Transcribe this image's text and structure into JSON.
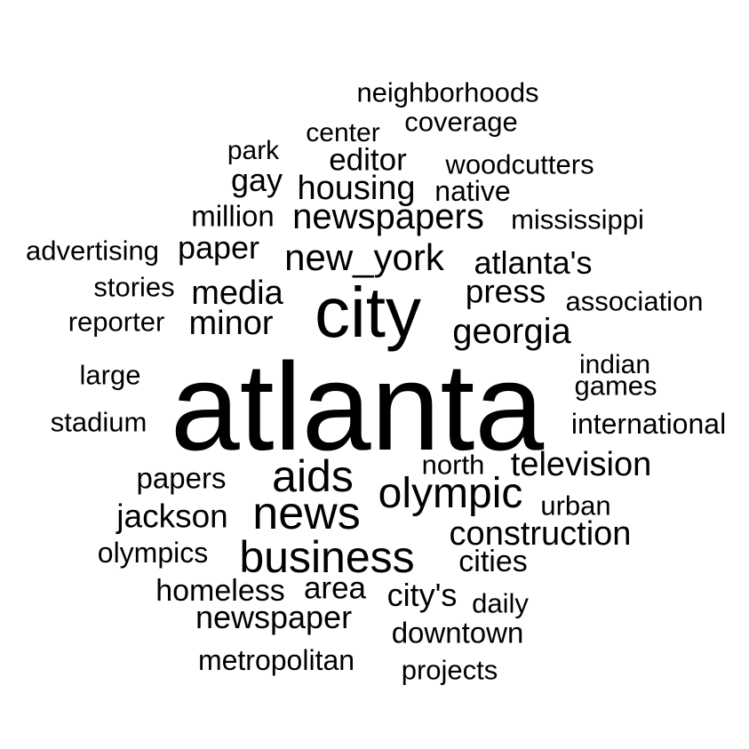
{
  "word_cloud": {
    "text_color": "#000000",
    "background_color": "#ffffff",
    "words": [
      {
        "text": "atlanta",
        "weight": 100
      },
      {
        "text": "city",
        "weight": 57
      },
      {
        "text": "news",
        "weight": 38
      },
      {
        "text": "business",
        "weight": 36
      },
      {
        "text": "aids",
        "weight": 36
      },
      {
        "text": "olympic",
        "weight": 34
      },
      {
        "text": "new_york",
        "weight": 30
      },
      {
        "text": "newspapers",
        "weight": 29
      },
      {
        "text": "georgia",
        "weight": 29
      },
      {
        "text": "housing",
        "weight": 29
      },
      {
        "text": "construction",
        "weight": 28
      },
      {
        "text": "media",
        "weight": 28
      },
      {
        "text": "minor",
        "weight": 28
      },
      {
        "text": "television",
        "weight": 28
      },
      {
        "text": "press",
        "weight": 27
      },
      {
        "text": "atlanta's",
        "weight": 27
      },
      {
        "text": "jackson",
        "weight": 27
      },
      {
        "text": "paper",
        "weight": 27
      },
      {
        "text": "gay",
        "weight": 27
      },
      {
        "text": "newspaper",
        "weight": 27
      },
      {
        "text": "city's",
        "weight": 27
      },
      {
        "text": "editor",
        "weight": 26
      },
      {
        "text": "area",
        "weight": 26
      },
      {
        "text": "homeless",
        "weight": 26
      },
      {
        "text": "cities",
        "weight": 26
      },
      {
        "text": "papers",
        "weight": 25
      },
      {
        "text": "million",
        "weight": 25
      },
      {
        "text": "downtown",
        "weight": 25
      },
      {
        "text": "olympics",
        "weight": 25
      },
      {
        "text": "metropolitan",
        "weight": 25
      },
      {
        "text": "international",
        "weight": 25
      },
      {
        "text": "native",
        "weight": 25
      },
      {
        "text": "mississippi",
        "weight": 24
      },
      {
        "text": "woodcutters",
        "weight": 24
      },
      {
        "text": "neighborhoods",
        "weight": 24
      },
      {
        "text": "coverage",
        "weight": 24
      },
      {
        "text": "association",
        "weight": 24
      },
      {
        "text": "reporter",
        "weight": 24
      },
      {
        "text": "stories",
        "weight": 24
      },
      {
        "text": "advertising",
        "weight": 24
      },
      {
        "text": "stadium",
        "weight": 24
      },
      {
        "text": "large",
        "weight": 24
      },
      {
        "text": "north",
        "weight": 24
      },
      {
        "text": "urban",
        "weight": 24
      },
      {
        "text": "daily",
        "weight": 24
      },
      {
        "text": "projects",
        "weight": 24
      },
      {
        "text": "games",
        "weight": 24
      },
      {
        "text": "indian",
        "weight": 23
      },
      {
        "text": "center",
        "weight": 23
      },
      {
        "text": "park",
        "weight": 23
      }
    ]
  }
}
